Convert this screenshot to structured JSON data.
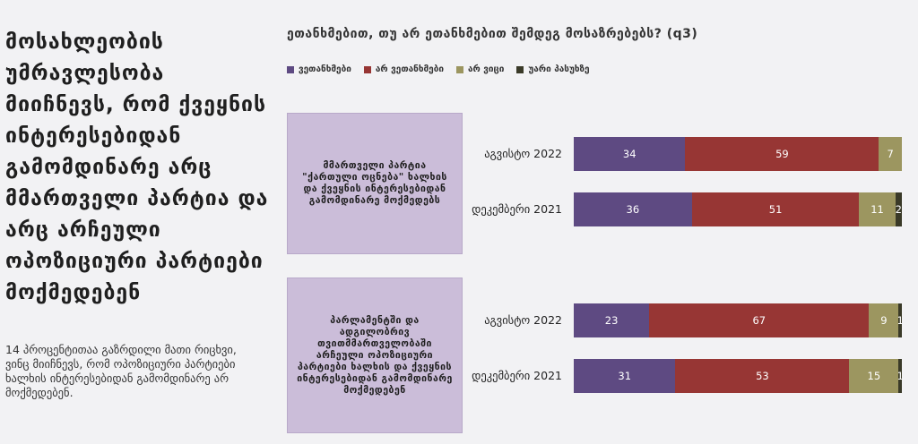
{
  "headline": "მოსახლეობის უმრავლესობა მიიჩნევს, რომ ქვეყნის ინტერესებიდან გამომდინარე არც მმართველი პარტია და არც არჩეული ოპოზიციური პარტიები მოქმედებენ",
  "note": "14 პროცენტითაა გაზრდილი მათი რიცხვი, ვინც მიიჩნევს, რომ ოპოზიციური პარტიები ხალხის ინტერესებიდან გამომდინარე არ მოქმედებენ.",
  "chart_data": {
    "type": "bar",
    "orientation": "horizontal",
    "stacked": true,
    "title": "ეთანხმებით, თუ არ ეთანხმებით შემდეგ მოსაზრებებს? (q3)",
    "legend_position": "top-left",
    "grid": false,
    "xlim": [
      0,
      100
    ],
    "colors": [
      "#5e4a82",
      "#973634",
      "#9c9660",
      "#3a3a28"
    ],
    "series": [
      {
        "name": "ვეთანხმები"
      },
      {
        "name": "არ ვეთანხმები"
      },
      {
        "name": "არ ვიცი"
      },
      {
        "name": "უარი პასუხზე"
      }
    ],
    "groups": [
      {
        "label": "მმართველი პარტია \"ქართული ოცნება\" ხალხის და ქვეყნის ინტერესებიდან გამომდინარე მოქმედებს",
        "rows": [
          {
            "category": "აგვისტო 2022",
            "values": [
              34,
              59,
              7,
              0
            ]
          },
          {
            "category": "დეკემბერი 2021",
            "values": [
              36,
              51,
              11,
              2
            ]
          }
        ]
      },
      {
        "label": "პარლამენტში და ადგილობრივ თვითმმართველობაში არჩეული ოპოზიციური პარტიები ხალხის და ქვეყნის ინტერესებიდან გამომდინარე მოქმედებენ",
        "rows": [
          {
            "category": "აგვისტო 2022",
            "values": [
              23,
              67,
              9,
              1
            ]
          },
          {
            "category": "დეკემბერი 2021",
            "values": [
              31,
              53,
              15,
              1
            ]
          }
        ]
      }
    ]
  }
}
